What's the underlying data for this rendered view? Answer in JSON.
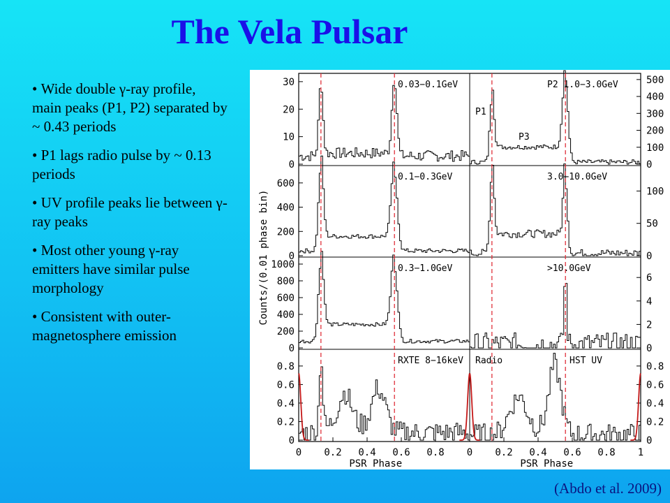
{
  "slide": {
    "title": "The Vela Pulsar",
    "bullets": [
      "Wide double γ-ray profile, main peaks (P1, P2) separated by ~ 0.43 periods",
      "P1 lags radio pulse by ~ 0.13 periods",
      "UV profile peaks lie between γ-ray peaks",
      "Most other young γ-ray emitters have similar pulse morphology",
      "Consistent with outer-magnetosphere emission"
    ],
    "citation": "(Abdo et al. 2009)"
  },
  "colors": {
    "background_top": "#16e4f6",
    "background_bottom": "#0ea4ef",
    "title": "#1a10e8",
    "citation": "#0b1480",
    "reference_lines": "#e0303a",
    "radio_curve": "#c41818",
    "histogram": "#000000"
  },
  "chart_data": {
    "type": "line",
    "grid": false,
    "ylabel": "Counts/(0.01 phase bin)",
    "xlabel": "PSR Phase",
    "xlim": [
      0,
      1
    ],
    "x_ticks": [
      "0",
      "0.2",
      "0.4",
      "0.6",
      "0.8",
      "0",
      "0.2",
      "0.4",
      "0.6",
      "0.8",
      "1"
    ],
    "reference_phases": [
      0.13,
      0.56
    ],
    "annotations": [
      "P1",
      "P2",
      "P3"
    ],
    "panels": [
      {
        "name": "0.03−0.1GeV",
        "side": "left",
        "ylim": [
          0,
          32
        ],
        "yticks": [
          "0",
          "10",
          "20",
          "30"
        ],
        "peaks": [
          {
            "phase": 0.13,
            "height": 26,
            "width": 0.012
          },
          {
            "phase": 0.56,
            "height": 28,
            "width": 0.014
          }
        ],
        "base": 3,
        "bridge": 1,
        "noise": 2.0
      },
      {
        "name": "P2  1.0−3.0GeV",
        "side": "right",
        "ylim": [
          0,
          520
        ],
        "yticks": [
          "0",
          "100",
          "200",
          "300",
          "400",
          "500"
        ],
        "peaks": [
          {
            "phase": 0.13,
            "height": 380,
            "width": 0.012
          },
          {
            "phase": 0.56,
            "height": 470,
            "width": 0.016
          }
        ],
        "base": 12,
        "bridge": 90,
        "noise": 14
      },
      {
        "name": "0.1−0.3GeV",
        "side": "left",
        "ylim": [
          0,
          720
        ],
        "yticks": [
          "0",
          "200",
          "400",
          "600"
        ],
        "peaks": [
          {
            "phase": 0.13,
            "height": 690,
            "width": 0.014
          },
          {
            "phase": 0.56,
            "height": 620,
            "width": 0.018
          }
        ],
        "base": 40,
        "bridge": 120,
        "noise": 18
      },
      {
        "name": "3.0−10.0GeV",
        "side": "right",
        "ylim": [
          0,
          135
        ],
        "yticks": [
          "0",
          "50",
          "100"
        ],
        "peaks": [
          {
            "phase": 0.13,
            "height": 120,
            "width": 0.012
          },
          {
            "phase": 0.56,
            "height": 115,
            "width": 0.012
          }
        ],
        "base": 4,
        "bridge": 30,
        "noise": 6
      },
      {
        "name": "0.3−1.0GeV",
        "side": "left",
        "ylim": [
          0,
          1050
        ],
        "yticks": [
          "0",
          "200",
          "400",
          "600",
          "800",
          "1000"
        ],
        "peaks": [
          {
            "phase": 0.13,
            "height": 920,
            "width": 0.015
          },
          {
            "phase": 0.56,
            "height": 880,
            "width": 0.018
          }
        ],
        "base": 80,
        "bridge": 200,
        "noise": 22
      },
      {
        "name": ">10.0GeV",
        "side": "right",
        "ylim": [
          0,
          7.5
        ],
        "yticks": [
          "0",
          "2",
          "4",
          "6"
        ],
        "peaks": [
          {
            "phase": 0.56,
            "height": 6,
            "width": 0.008
          }
        ],
        "base": 0.3,
        "bridge": 0.2,
        "noise": 1.0
      },
      {
        "name": "RXTE 8−16keV",
        "side": "left",
        "ylim": [
          0,
          0.95
        ],
        "yticks": [
          "0",
          "0.2",
          "0.4",
          "0.6",
          "0.8"
        ],
        "peaks": [
          {
            "phase": 0.13,
            "height": 0.8,
            "width": 0.01
          },
          {
            "phase": 0.27,
            "height": 0.38,
            "width": 0.04
          },
          {
            "phase": 0.47,
            "height": 0.45,
            "width": 0.04
          }
        ],
        "base": 0.08,
        "bridge": 0.05,
        "noise": 0.12
      },
      {
        "name": "Radio",
        "side": "right",
        "label_align": "left",
        "ylim": [
          0,
          0.95
        ],
        "yticks": [
          "0",
          "0.2",
          "0.4",
          "0.6",
          "0.8"
        ],
        "peaks": [
          {
            "phase": 0.28,
            "height": 0.38,
            "width": 0.05
          },
          {
            "phase": 0.5,
            "height": 0.72,
            "width": 0.035
          }
        ],
        "base": 0.06,
        "bridge": 0.05,
        "noise": 0.12
      },
      {
        "name": "HST UV",
        "side": "right",
        "label_only": true
      }
    ],
    "radio_curve": {
      "phase": 0.0,
      "height": 0.72,
      "width": 0.012
    }
  }
}
